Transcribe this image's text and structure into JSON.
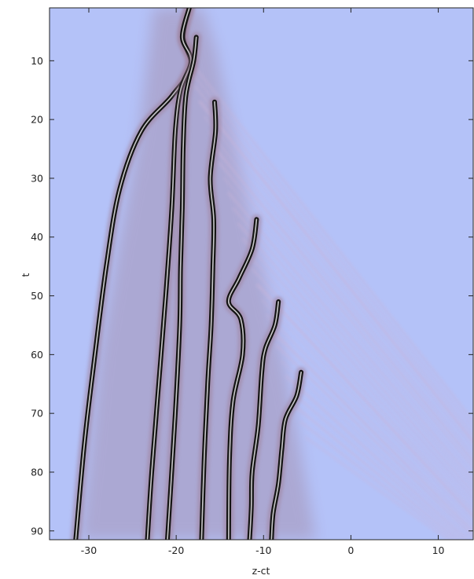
{
  "chart_data": {
    "type": "heatmap",
    "title": "",
    "xlabel": "z-ct",
    "ylabel": "t",
    "xlim": [
      -34.5,
      14
    ],
    "ylim": [
      1,
      91.5
    ],
    "y_axis_inverted": true,
    "grid": false,
    "legend": "none",
    "x_ticks": [
      -30,
      -20,
      -10,
      0,
      10
    ],
    "y_ticks": [
      10,
      20,
      30,
      40,
      50,
      60,
      70,
      80,
      90
    ],
    "colors": {
      "background": "#b4c2f8",
      "ridge_core": "#141414",
      "ridge_highlight": "#e8e8e8",
      "halo": "#9e7f98",
      "ripple": "#c9b4d8",
      "axis": "#222222"
    },
    "features": [
      {
        "name": "soliton-1",
        "points": [
          [
            -18.5,
            1
          ],
          [
            -19.2,
            6
          ],
          [
            -18.3,
            11
          ],
          [
            -20.5,
            16
          ],
          [
            -24.0,
            22
          ],
          [
            -26.5,
            32
          ],
          [
            -28.0,
            45
          ],
          [
            -29.3,
            60
          ],
          [
            -30.5,
            75
          ],
          [
            -31.5,
            91.5
          ]
        ]
      },
      {
        "name": "soliton-2",
        "points": [
          [
            -18.5,
            1
          ],
          [
            -19.3,
            6
          ],
          [
            -18.3,
            10
          ],
          [
            -19.5,
            15
          ],
          [
            -20.1,
            22
          ],
          [
            -20.5,
            35
          ],
          [
            -21.2,
            50
          ],
          [
            -22.0,
            65
          ],
          [
            -22.8,
            80
          ],
          [
            -23.3,
            91.5
          ]
        ]
      },
      {
        "name": "soliton-3",
        "points": [
          [
            -17.7,
            6
          ],
          [
            -18.0,
            10
          ],
          [
            -18.9,
            16
          ],
          [
            -19.2,
            25
          ],
          [
            -19.3,
            35
          ],
          [
            -19.5,
            45
          ],
          [
            -19.6,
            55
          ],
          [
            -20.1,
            70
          ],
          [
            -20.6,
            82
          ],
          [
            -21.0,
            91.5
          ]
        ]
      },
      {
        "name": "soliton-4",
        "points": [
          [
            -15.6,
            17
          ],
          [
            -15.5,
            22
          ],
          [
            -16.1,
            30
          ],
          [
            -15.7,
            37
          ],
          [
            -15.8,
            45
          ],
          [
            -16.0,
            55
          ],
          [
            -16.4,
            65
          ],
          [
            -16.8,
            78
          ],
          [
            -17.1,
            91.5
          ]
        ]
      },
      {
        "name": "soliton-5",
        "points": [
          [
            -10.8,
            37
          ],
          [
            -11.3,
            42
          ],
          [
            -12.8,
            47
          ],
          [
            -14.0,
            51
          ],
          [
            -12.6,
            54
          ],
          [
            -12.4,
            60
          ],
          [
            -13.5,
            68
          ],
          [
            -13.9,
            78
          ],
          [
            -14.0,
            91.5
          ]
        ]
      },
      {
        "name": "soliton-6",
        "points": [
          [
            -8.3,
            51
          ],
          [
            -8.7,
            55
          ],
          [
            -9.8,
            59
          ],
          [
            -10.2,
            63
          ],
          [
            -10.6,
            72
          ],
          [
            -11.3,
            80
          ],
          [
            -11.4,
            86
          ],
          [
            -11.6,
            91.5
          ]
        ]
      },
      {
        "name": "soliton-7",
        "points": [
          [
            -5.7,
            63
          ],
          [
            -6.2,
            67
          ],
          [
            -7.5,
            71
          ],
          [
            -7.9,
            76
          ],
          [
            -8.3,
            82
          ],
          [
            -8.9,
            87
          ],
          [
            -9.1,
            91.5
          ]
        ]
      }
    ]
  }
}
